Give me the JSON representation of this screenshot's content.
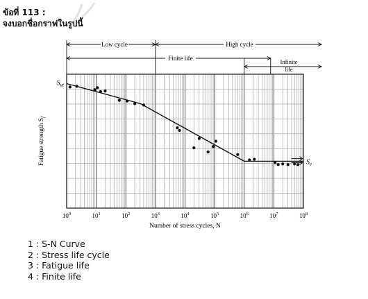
{
  "question": {
    "number": "ข้อที่ 113 :",
    "prompt": "จงบอกชื่อกราฟในรูปนี้"
  },
  "choices": [
    {
      "number": "1",
      "text": "S-N Curve"
    },
    {
      "number": "2",
      "text": "Stress life cycle"
    },
    {
      "number": "3",
      "text": "Fatigue life"
    },
    {
      "number": "4",
      "text": "Finite life"
    }
  ],
  "chart_data": {
    "type": "line",
    "title": "",
    "xlabel": "Number of stress cycles, N",
    "ylabel": "Fatigue strength S",
    "ylabel_sub": "f",
    "x_scale": "log",
    "xlim": [
      1,
      100000000
    ],
    "x_ticks": [
      {
        "base": "10",
        "exp": "0",
        "value": 1
      },
      {
        "base": "10",
        "exp": "1",
        "value": 10
      },
      {
        "base": "10",
        "exp": "2",
        "value": 100
      },
      {
        "base": "10",
        "exp": "3",
        "value": 1000
      },
      {
        "base": "10",
        "exp": "4",
        "value": 10000
      },
      {
        "base": "10",
        "exp": "5",
        "value": 100000
      },
      {
        "base": "10",
        "exp": "6",
        "value": 1000000
      },
      {
        "base": "10",
        "exp": "7",
        "value": 10000000
      },
      {
        "base": "10",
        "exp": "8",
        "value": 100000000
      }
    ],
    "ylim": [
      0,
      1
    ],
    "grid": true,
    "y_labels": {
      "sut": {
        "main": "S",
        "sub": "ut",
        "y": 0.93
      },
      "se": {
        "main": "S",
        "sub": "e",
        "y": 0.35
      }
    },
    "curve": [
      {
        "x": 1,
        "y": 0.93
      },
      {
        "x": 316,
        "y": 0.78
      },
      {
        "x": 1000000,
        "y": 0.35
      },
      {
        "x": 100000000,
        "y": 0.35
      }
    ],
    "points": [
      {
        "x": 1.3,
        "y": 0.905
      },
      {
        "x": 2.2,
        "y": 0.91
      },
      {
        "x": 9,
        "y": 0.885
      },
      {
        "x": 11,
        "y": 0.9
      },
      {
        "x": 14,
        "y": 0.87
      },
      {
        "x": 20,
        "y": 0.875
      },
      {
        "x": 60,
        "y": 0.805
      },
      {
        "x": 110,
        "y": 0.8
      },
      {
        "x": 200,
        "y": 0.78
      },
      {
        "x": 400,
        "y": 0.77
      },
      {
        "x": 5500,
        "y": 0.6
      },
      {
        "x": 6500,
        "y": 0.58
      },
      {
        "x": 20000,
        "y": 0.45
      },
      {
        "x": 30000,
        "y": 0.52
      },
      {
        "x": 60000,
        "y": 0.42
      },
      {
        "x": 90000,
        "y": 0.46
      },
      {
        "x": 110000,
        "y": 0.5
      },
      {
        "x": 600000,
        "y": 0.4
      },
      {
        "x": 1500000,
        "y": 0.36
      },
      {
        "x": 2200000,
        "y": 0.365
      },
      {
        "x": 11000000,
        "y": 0.34
      },
      {
        "x": 14000000,
        "y": 0.325
      },
      {
        "x": 20000000,
        "y": 0.33
      },
      {
        "x": 30000000,
        "y": 0.325
      },
      {
        "x": 50000000,
        "y": 0.33
      },
      {
        "x": 65000000,
        "y": 0.325
      }
    ],
    "arrows_right": [
      {
        "x": 60000000,
        "y": 0.37
      },
      {
        "x": 60000000,
        "y": 0.34
      }
    ],
    "annotations": {
      "low_cycle": {
        "text": "Low cycle",
        "x_start": 1,
        "x_end": 1000
      },
      "high_cycle": {
        "text": "High cycle",
        "x_start": 1000,
        "x_end": 100000000
      },
      "finite_life": {
        "text": "Finite life",
        "x_start": 1,
        "x_end": 1000000
      },
      "infinite_life": {
        "line1": "Infinite",
        "line2": "life",
        "x_start": 1000000,
        "x_end": 100000000
      }
    }
  }
}
